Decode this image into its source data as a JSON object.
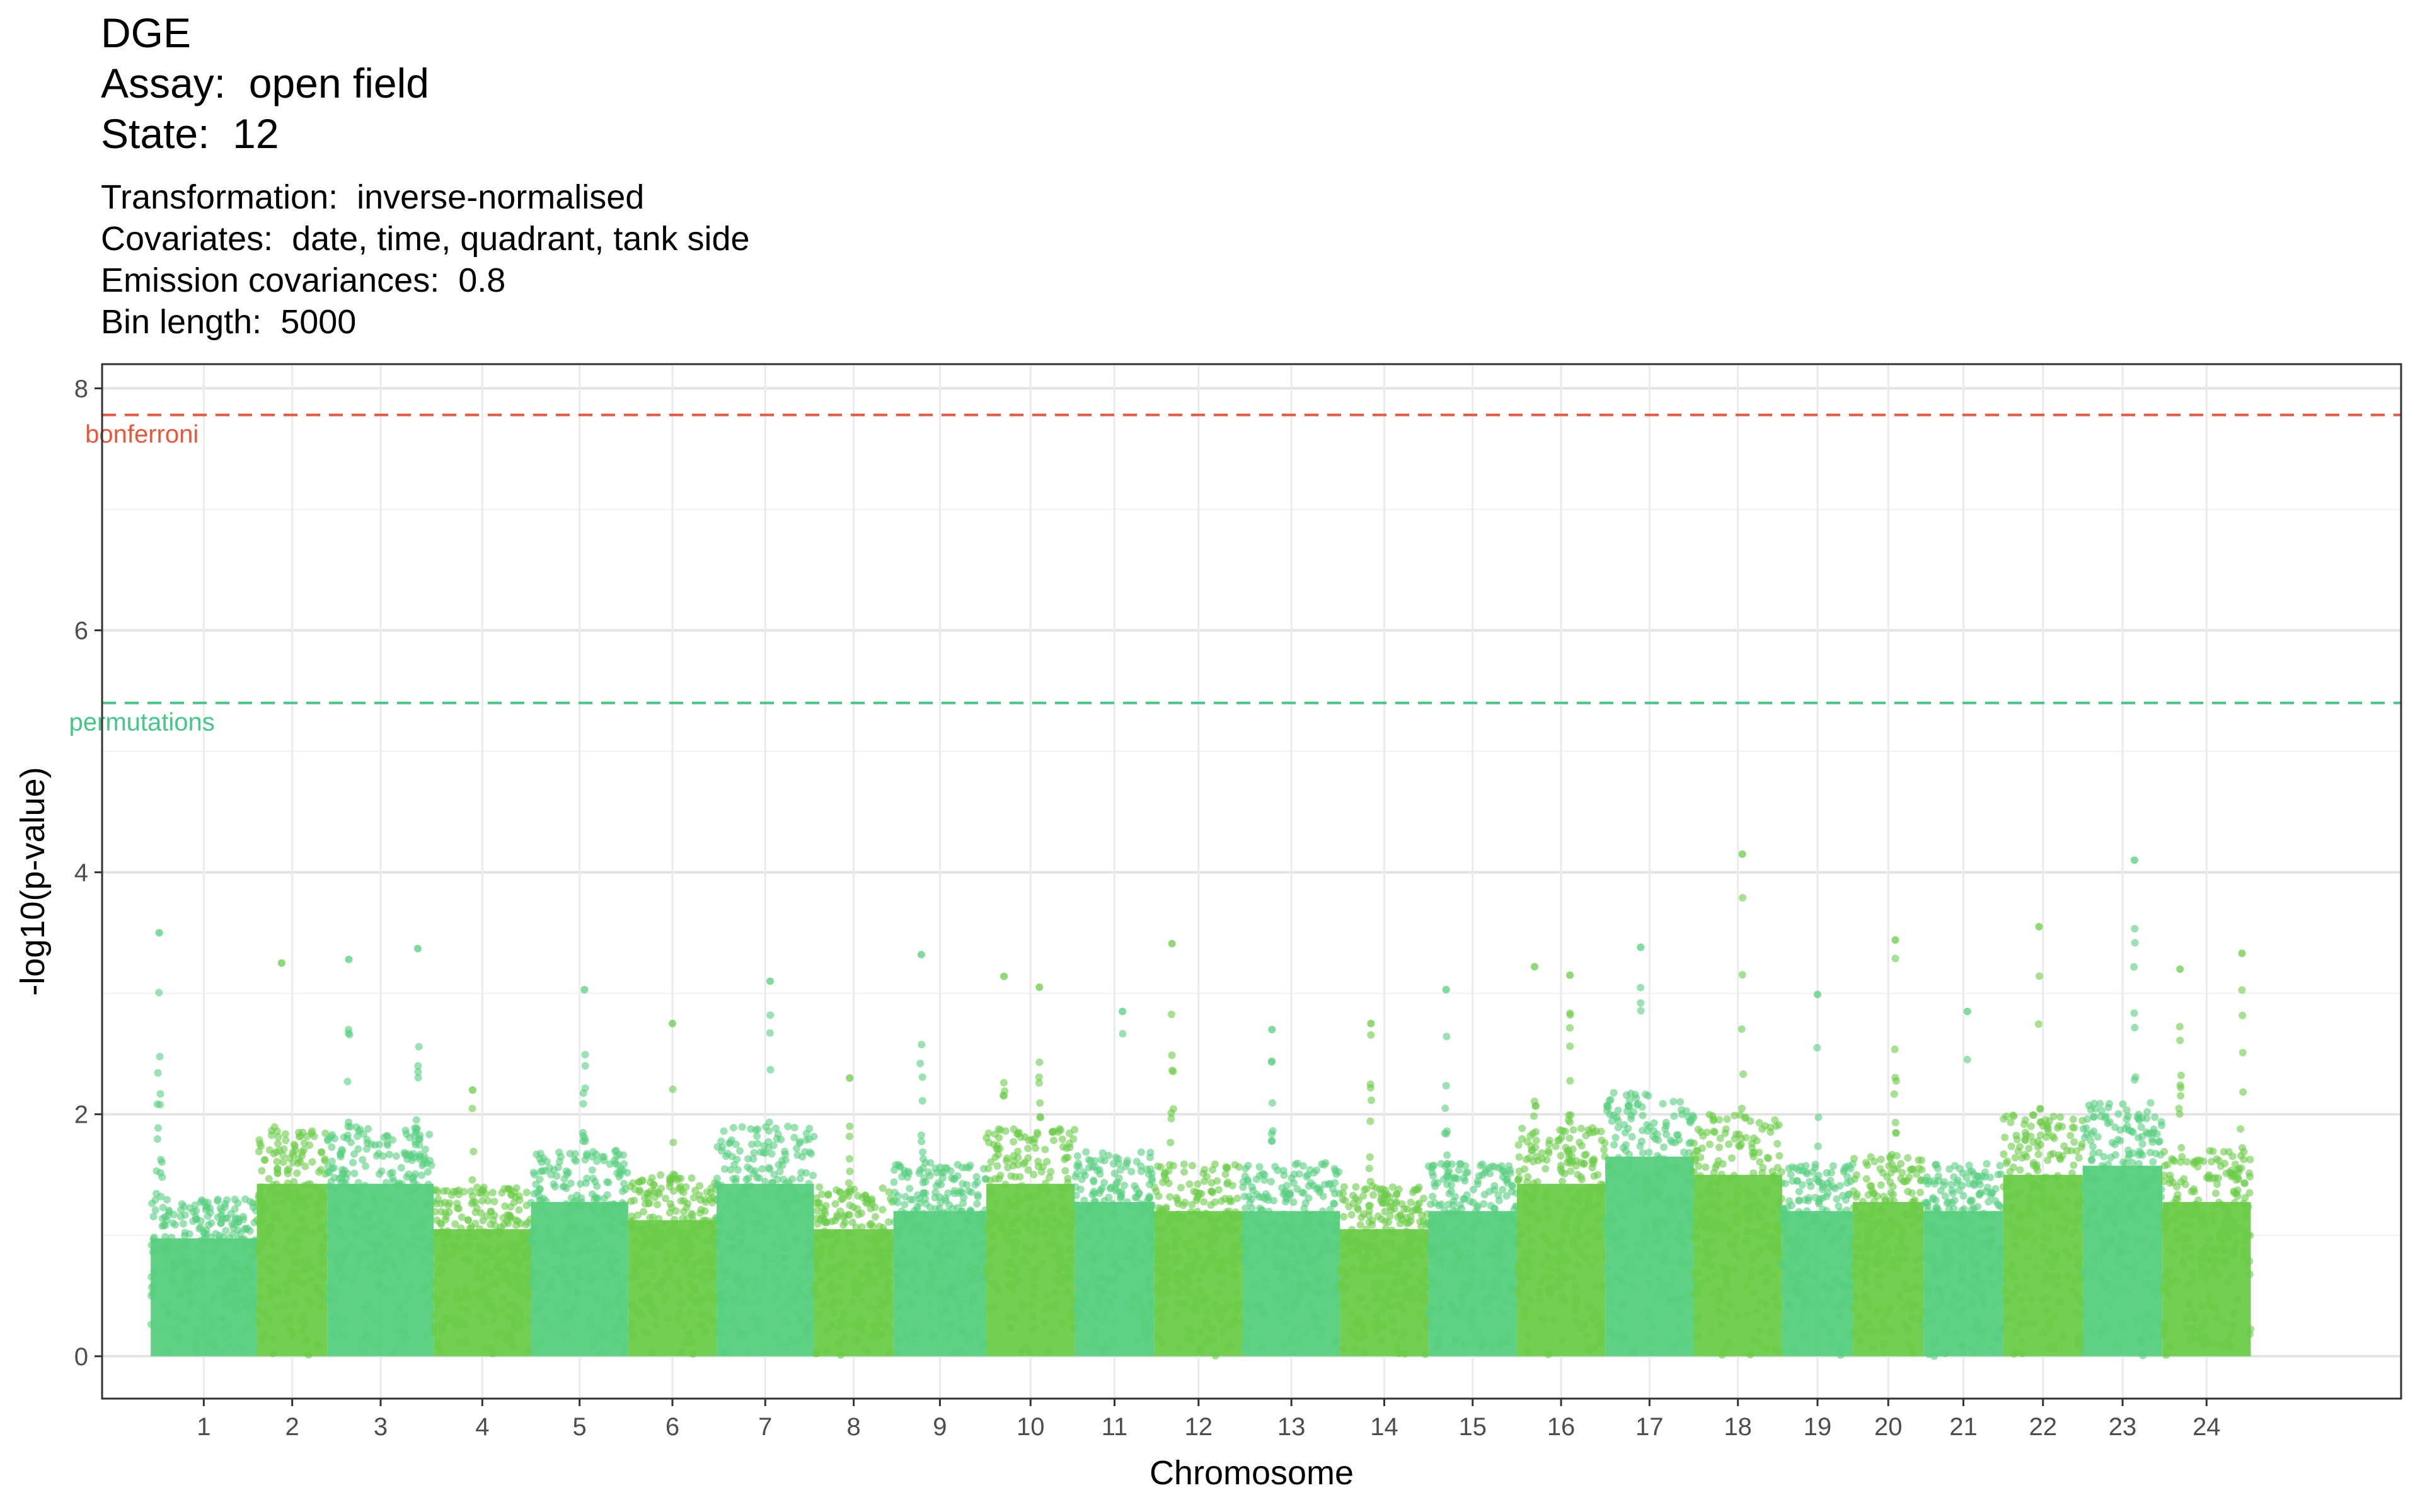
{
  "header": {
    "title_lines": [
      "DGE",
      "Assay:  open field",
      "State:  12"
    ],
    "subtitle_lines": [
      "Transformation:  inverse-normalised",
      "Covariates:  date, time, quadrant, tank side",
      "Emission covariances:  0.8",
      "Bin length:  5000"
    ]
  },
  "chart_data": {
    "type": "scatter",
    "title": "DGE",
    "xlabel": "Chromosome",
    "ylabel": "-log10(p-value)",
    "ylim": [
      -0.35,
      8.2
    ],
    "yticks": [
      "0",
      "2",
      "4",
      "6",
      "8"
    ],
    "grid": true,
    "colors": {
      "odd": "#56cf7e",
      "even": "#6acc48",
      "bonferroni": "#e8563c",
      "permutations": "#44c887"
    },
    "thresholds": [
      {
        "name": "bonferroni",
        "value": 7.78,
        "color": "#e8563c"
      },
      {
        "name": "permutations",
        "value": 5.4,
        "color": "#44c887"
      }
    ],
    "chromosomes": [
      {
        "label": "1",
        "start": 0.0,
        "end": 1.2,
        "base_max": 1.3,
        "peaks": [
          [
            0.08,
            3.5
          ]
        ]
      },
      {
        "label": "2",
        "start": 1.2,
        "end": 2.0,
        "base_max": 1.9,
        "peaks": [
          [
            0.35,
            3.25
          ]
        ]
      },
      {
        "label": "3",
        "start": 2.0,
        "end": 3.2,
        "base_max": 1.9,
        "peaks": [
          [
            0.2,
            3.28
          ],
          [
            0.85,
            3.37
          ]
        ]
      },
      {
        "label": "4",
        "start": 3.2,
        "end": 4.3,
        "base_max": 1.4,
        "peaks": [
          [
            0.4,
            2.2
          ]
        ]
      },
      {
        "label": "5",
        "start": 4.3,
        "end": 5.4,
        "base_max": 1.7,
        "peaks": [
          [
            0.55,
            3.03
          ]
        ]
      },
      {
        "label": "6",
        "start": 5.4,
        "end": 6.4,
        "base_max": 1.5,
        "peaks": [
          [
            0.5,
            2.75
          ]
        ]
      },
      {
        "label": "7",
        "start": 6.4,
        "end": 7.5,
        "base_max": 1.9,
        "peaks": [
          [
            0.55,
            3.1
          ]
        ]
      },
      {
        "label": "8",
        "start": 7.5,
        "end": 8.4,
        "base_max": 1.4,
        "peaks": [
          [
            0.45,
            2.3
          ]
        ]
      },
      {
        "label": "9",
        "start": 8.4,
        "end": 9.45,
        "base_max": 1.6,
        "peaks": [
          [
            0.3,
            3.32
          ]
        ]
      },
      {
        "label": "10",
        "start": 9.45,
        "end": 10.45,
        "base_max": 1.9,
        "peaks": [
          [
            0.2,
            3.14
          ],
          [
            0.6,
            3.05
          ]
        ]
      },
      {
        "label": "11",
        "start": 10.45,
        "end": 11.35,
        "base_max": 1.7,
        "peaks": [
          [
            0.6,
            2.85
          ]
        ]
      },
      {
        "label": "12",
        "start": 11.35,
        "end": 12.35,
        "base_max": 1.6,
        "peaks": [
          [
            0.2,
            3.41
          ]
        ]
      },
      {
        "label": "13",
        "start": 12.35,
        "end": 13.45,
        "base_max": 1.6,
        "peaks": [
          [
            0.3,
            2.7
          ]
        ]
      },
      {
        "label": "14",
        "start": 13.45,
        "end": 14.45,
        "base_max": 1.4,
        "peaks": [
          [
            0.35,
            2.75
          ]
        ]
      },
      {
        "label": "15",
        "start": 14.45,
        "end": 15.45,
        "base_max": 1.6,
        "peaks": [
          [
            0.2,
            3.03
          ]
        ]
      },
      {
        "label": "16",
        "start": 15.45,
        "end": 16.45,
        "base_max": 1.9,
        "peaks": [
          [
            0.2,
            3.22
          ],
          [
            0.6,
            3.15
          ]
        ]
      },
      {
        "label": "17",
        "start": 16.45,
        "end": 17.45,
        "base_max": 2.2,
        "peaks": [
          [
            0.4,
            3.38
          ]
        ]
      },
      {
        "label": "18",
        "start": 17.45,
        "end": 18.45,
        "base_max": 2.0,
        "peaks": [
          [
            0.55,
            4.15
          ]
        ]
      },
      {
        "label": "19",
        "start": 18.45,
        "end": 19.25,
        "base_max": 1.6,
        "peaks": [
          [
            0.5,
            2.99
          ]
        ]
      },
      {
        "label": "20",
        "start": 19.25,
        "end": 20.05,
        "base_max": 1.7,
        "peaks": [
          [
            0.6,
            3.44
          ]
        ]
      },
      {
        "label": "21",
        "start": 20.05,
        "end": 20.95,
        "base_max": 1.6,
        "peaks": [
          [
            0.55,
            2.85
          ]
        ]
      },
      {
        "label": "22",
        "start": 20.95,
        "end": 21.85,
        "base_max": 2.0,
        "peaks": [
          [
            0.45,
            3.55
          ]
        ]
      },
      {
        "label": "23",
        "start": 21.85,
        "end": 22.75,
        "base_max": 2.1,
        "peaks": [
          [
            0.65,
            4.1
          ]
        ]
      },
      {
        "label": "24",
        "start": 22.75,
        "end": 23.75,
        "base_max": 1.7,
        "peaks": [
          [
            0.2,
            3.2
          ],
          [
            0.9,
            3.33
          ]
        ]
      }
    ]
  }
}
